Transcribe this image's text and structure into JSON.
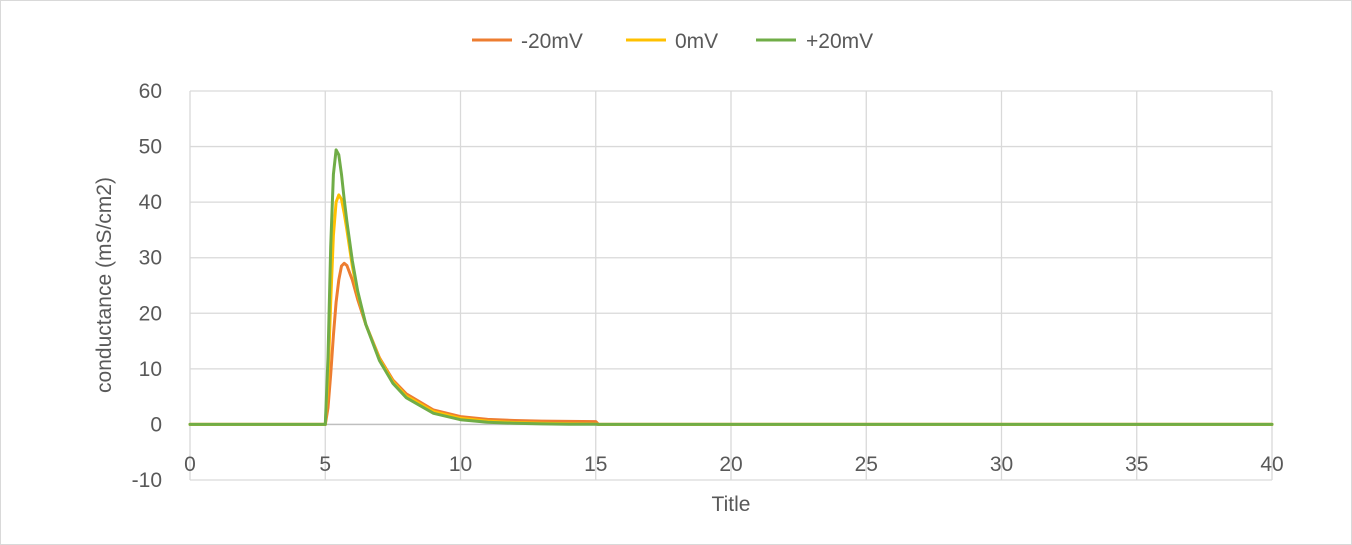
{
  "chart_data": {
    "type": "line",
    "title": "",
    "xlabel": "Title",
    "ylabel": "conductance (mS/cm2)",
    "xlim": [
      0,
      40
    ],
    "ylim": [
      -10,
      60
    ],
    "x_ticks": [
      "0",
      "5",
      "10",
      "15",
      "20",
      "25",
      "30",
      "35",
      "40"
    ],
    "y_ticks": [
      "-10",
      "0",
      "10",
      "20",
      "30",
      "40",
      "50",
      "60"
    ],
    "grid": true,
    "legend_position": "top",
    "series": [
      {
        "name": "-20mV",
        "color": "#ED7D31",
        "x": [
          0,
          4.9,
          5.0,
          5.1,
          5.2,
          5.3,
          5.4,
          5.5,
          5.6,
          5.7,
          5.8,
          6.0,
          6.2,
          6.5,
          7.0,
          7.5,
          8.0,
          9.0,
          10.0,
          11.0,
          12.0,
          13.0,
          14.0,
          15.0,
          15.1,
          20,
          25,
          30,
          35,
          40
        ],
        "values": [
          0,
          0,
          0,
          3,
          9,
          16,
          22,
          26,
          28.5,
          29,
          28.6,
          26,
          22.5,
          18,
          12,
          8,
          5.5,
          2.6,
          1.4,
          0.9,
          0.7,
          0.6,
          0.55,
          0.5,
          0,
          0,
          0,
          0,
          0,
          0
        ]
      },
      {
        "name": "0mV",
        "color": "#FFC000",
        "x": [
          0,
          4.9,
          5.0,
          5.1,
          5.2,
          5.3,
          5.4,
          5.5,
          5.6,
          5.7,
          5.8,
          6.0,
          6.2,
          6.5,
          7.0,
          7.5,
          8.0,
          9.0,
          10.0,
          11.0,
          12.0,
          13.0,
          14.0,
          15.0,
          15.1,
          20,
          25,
          30,
          35,
          40
        ],
        "values": [
          0,
          0,
          0,
          8,
          22,
          34,
          40,
          41.3,
          40.5,
          38,
          35,
          28.5,
          23.5,
          18,
          11.8,
          7.7,
          5.1,
          2.3,
          1.1,
          0.6,
          0.35,
          0.2,
          0.12,
          0.08,
          0,
          0,
          0,
          0,
          0,
          0
        ]
      },
      {
        "name": "+20mV",
        "color": "#70AD47",
        "x": [
          0,
          4.9,
          5.0,
          5.1,
          5.2,
          5.3,
          5.4,
          5.5,
          5.6,
          5.7,
          5.8,
          6.0,
          6.2,
          6.5,
          7.0,
          7.5,
          8.0,
          9.0,
          10.0,
          11.0,
          12.0,
          13.0,
          14.0,
          15.0,
          15.1,
          20,
          25,
          30,
          35,
          40
        ],
        "values": [
          0,
          0,
          0,
          12,
          32,
          45,
          49.4,
          48.5,
          45,
          40.5,
          36.5,
          29.5,
          24,
          18,
          11.5,
          7.4,
          4.8,
          2.0,
          0.85,
          0.4,
          0.2,
          0.1,
          0.05,
          0.03,
          0,
          0,
          0,
          0,
          0,
          0
        ]
      }
    ]
  }
}
